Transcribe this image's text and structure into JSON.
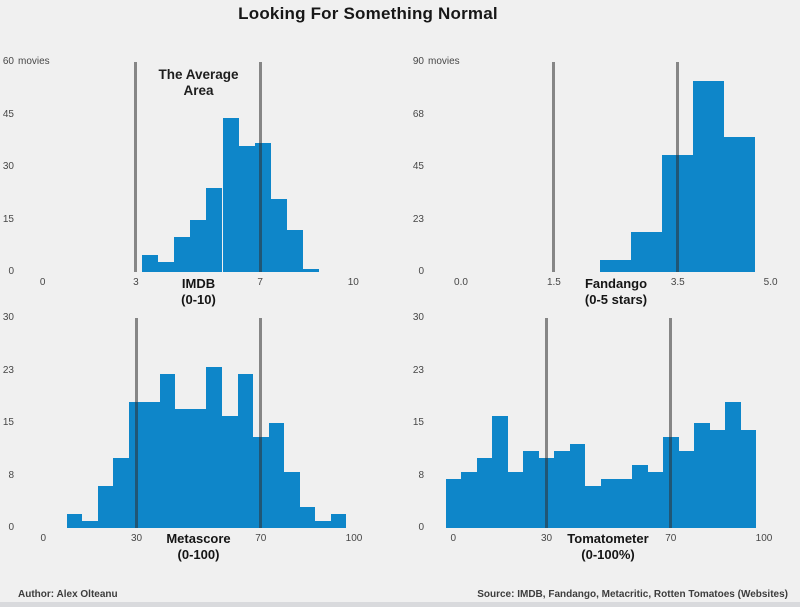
{
  "title": "Looking For Something Normal",
  "footer": {
    "author": "Author: Alex Olteanu",
    "source": "Source: IMDB, Fandango, Metacritic, Rotten Tomatoes (Websites)"
  },
  "colors": {
    "background": "#f0f0f0",
    "bar": "#0e86c9",
    "vline_rgba": "rgba(48,48,48,0.55)",
    "bottom_strip": "#d9dadd"
  },
  "chart_data": [
    {
      "id": "imdb",
      "type": "histogram",
      "xlabel_lines": [
        "IMDB",
        "(0-10)"
      ],
      "annotation_lines": [
        "The Average",
        "Area"
      ],
      "xlim": [
        0,
        10
      ],
      "ylim": [
        0,
        60
      ],
      "x_ticks": [
        {
          "v": 0,
          "label": "0"
        },
        {
          "v": 3,
          "label": "3"
        },
        {
          "v": 7,
          "label": "7"
        },
        {
          "v": 10,
          "label": "10"
        }
      ],
      "y_ticks": [
        {
          "v": 0,
          "label": "0"
        },
        {
          "v": 15,
          "label": "15"
        },
        {
          "v": 30,
          "label": "30"
        },
        {
          "v": 45,
          "label": "45"
        },
        {
          "v": 60,
          "label": "60",
          "suffix": "movies"
        }
      ],
      "vlines": [
        3,
        7
      ],
      "bin_start": 3.2,
      "bin_width": 0.518,
      "counts": [
        5,
        3,
        10,
        15,
        24,
        44,
        36,
        37,
        21,
        12,
        1
      ]
    },
    {
      "id": "fandango",
      "type": "histogram",
      "xlabel_lines": [
        "Fandango",
        "(0-5 stars)"
      ],
      "xlim": [
        0,
        5
      ],
      "ylim": [
        0,
        90
      ],
      "x_ticks": [
        {
          "v": 0,
          "label": "0.0"
        },
        {
          "v": 1.5,
          "label": "1.5"
        },
        {
          "v": 3.5,
          "label": "3.5"
        },
        {
          "v": 5,
          "label": "5.0"
        }
      ],
      "y_ticks": [
        {
          "v": 0,
          "label": "0"
        },
        {
          "v": 22.5,
          "label": "23"
        },
        {
          "v": 45,
          "label": "45"
        },
        {
          "v": 67.5,
          "label": "68"
        },
        {
          "v": 90,
          "label": "90",
          "suffix": "movies"
        }
      ],
      "vlines": [
        1.5,
        3.5
      ],
      "bin_start": 2.25,
      "bin_width": 0.5,
      "counts": [
        5,
        17,
        50,
        82,
        58
      ]
    },
    {
      "id": "metascore",
      "type": "histogram",
      "xlabel_lines": [
        "Metascore",
        "(0-100)"
      ],
      "xlim": [
        0,
        100
      ],
      "ylim": [
        0,
        30
      ],
      "x_ticks": [
        {
          "v": 0,
          "label": "0"
        },
        {
          "v": 30,
          "label": "30"
        },
        {
          "v": 70,
          "label": "70"
        },
        {
          "v": 100,
          "label": "100"
        }
      ],
      "y_ticks": [
        {
          "v": 0,
          "label": "0"
        },
        {
          "v": 7.5,
          "label": "8"
        },
        {
          "v": 15,
          "label": "15"
        },
        {
          "v": 22.5,
          "label": "23"
        },
        {
          "v": 30,
          "label": "30"
        }
      ],
      "vlines": [
        30,
        70
      ],
      "bin_start": 7.5,
      "bin_width": 5,
      "counts": [
        2,
        1,
        6,
        10,
        18,
        18,
        22,
        17,
        17,
        23,
        16,
        22,
        13,
        15,
        8,
        3,
        1,
        2
      ]
    },
    {
      "id": "tomatometer",
      "type": "histogram",
      "xlabel_lines": [
        "Tomatometer",
        "(0-100%)"
      ],
      "xlim": [
        0,
        100
      ],
      "ylim": [
        0,
        30
      ],
      "x_ticks": [
        {
          "v": 0,
          "label": "0"
        },
        {
          "v": 30,
          "label": "30"
        },
        {
          "v": 70,
          "label": "70"
        },
        {
          "v": 100,
          "label": "100"
        }
      ],
      "y_ticks": [
        {
          "v": 0,
          "label": "0"
        },
        {
          "v": 7.5,
          "label": "8"
        },
        {
          "v": 15,
          "label": "15"
        },
        {
          "v": 22.5,
          "label": "23"
        },
        {
          "v": 30,
          "label": "30"
        }
      ],
      "vlines": [
        30,
        70
      ],
      "bin_start": -2.5,
      "bin_width": 5,
      "counts": [
        7,
        8,
        10,
        16,
        8,
        11,
        10,
        11,
        12,
        6,
        7,
        7,
        9,
        8,
        13,
        11,
        15,
        14,
        18,
        14
      ]
    }
  ]
}
